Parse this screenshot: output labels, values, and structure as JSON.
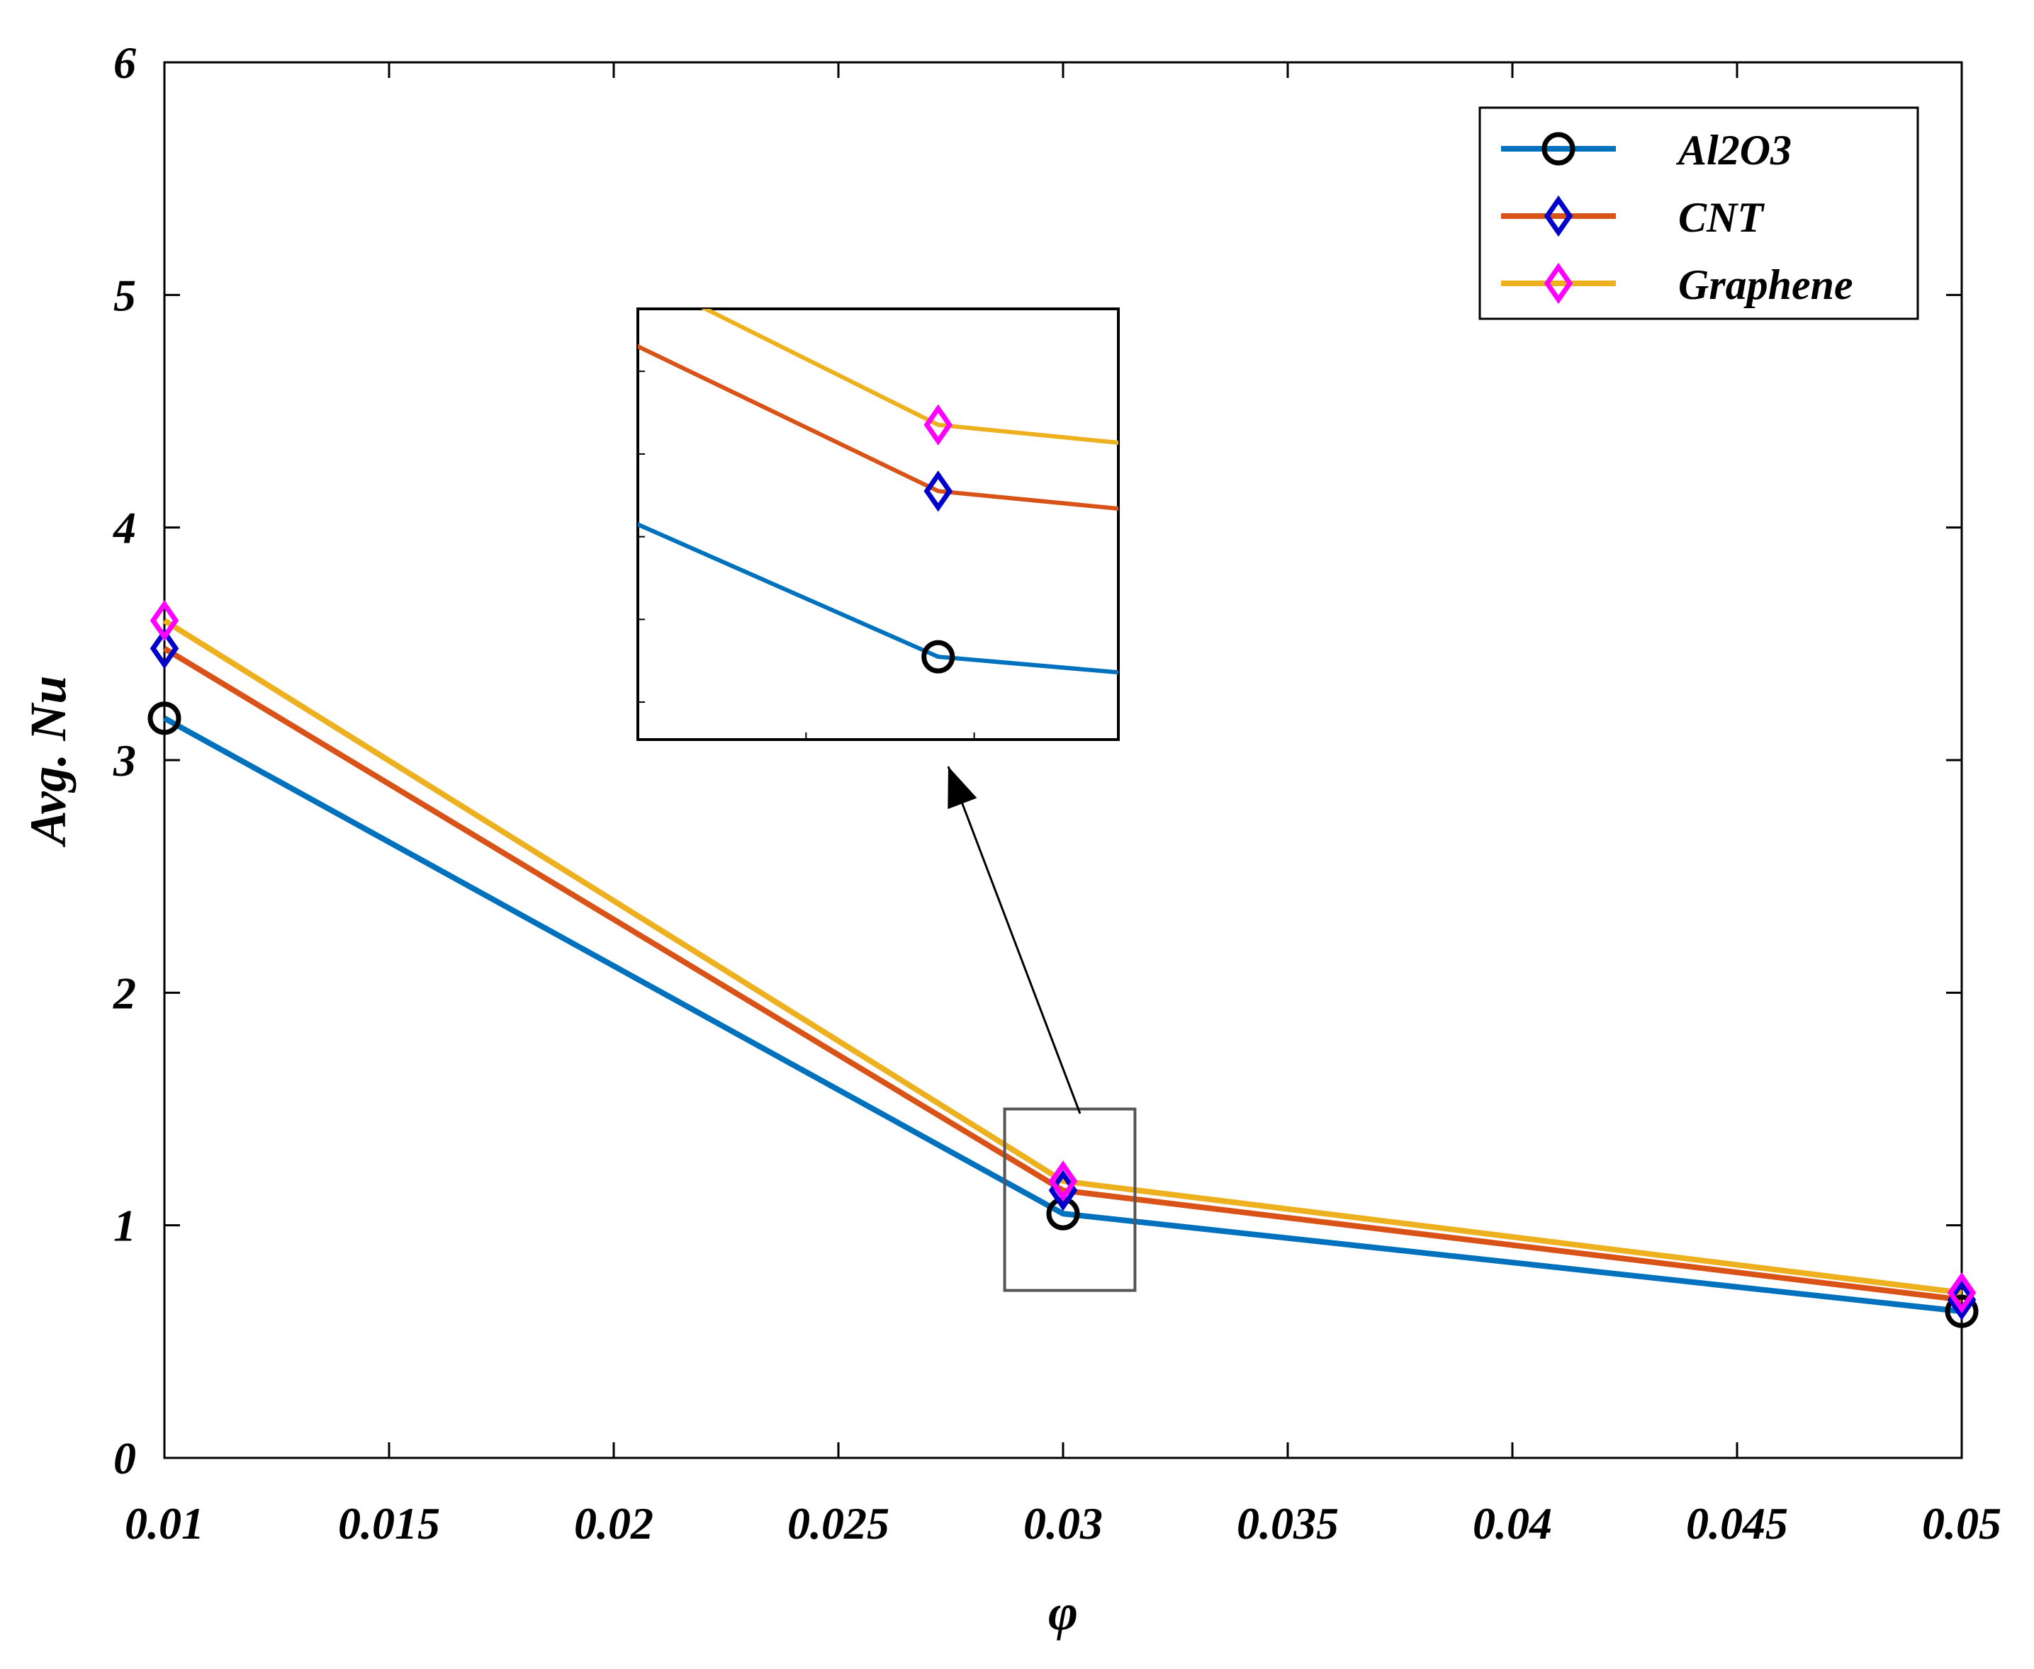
{
  "chart_data": {
    "type": "line",
    "title": "",
    "xlabel": "φ",
    "ylabel": "Avg. Nu",
    "x": [
      0.01,
      0.03,
      0.05
    ],
    "xlim": [
      0.01,
      0.05
    ],
    "ylim": [
      0,
      6
    ],
    "xticks": [
      0.01,
      0.015,
      0.02,
      0.025,
      0.03,
      0.035,
      0.04,
      0.045,
      0.05
    ],
    "xtick_labels": [
      "0.01",
      "0.015",
      "0.02",
      "0.025",
      "0.03",
      "0.035",
      "0.04",
      "0.045",
      "0.05"
    ],
    "yticks": [
      0,
      1,
      2,
      3,
      4,
      5,
      6
    ],
    "ytick_labels": [
      "0",
      "1",
      "2",
      "3",
      "4",
      "5",
      "6"
    ],
    "grid": false,
    "legend_position": "top-right",
    "series": [
      {
        "name": "Al2O3",
        "values": [
          3.18,
          1.05,
          0.63
        ],
        "color": "#0072BD",
        "marker": "circle",
        "marker_color": "#000000"
      },
      {
        "name": "CNT",
        "values": [
          3.48,
          1.15,
          0.68
        ],
        "color": "#D95319",
        "marker": "diamond",
        "marker_color": "#0000CC"
      },
      {
        "name": "Graphene",
        "values": [
          3.6,
          1.19,
          0.71
        ],
        "color": "#EDB120",
        "marker": "diamond",
        "marker_color": "#FF00FF"
      }
    ],
    "annotations": [
      {
        "type": "zoom-inset",
        "target_x": [
          0.0287,
          0.0316
        ],
        "target_y": [
          0.72,
          1.5
        ],
        "description": "magnified view near φ = 0.03"
      }
    ]
  }
}
